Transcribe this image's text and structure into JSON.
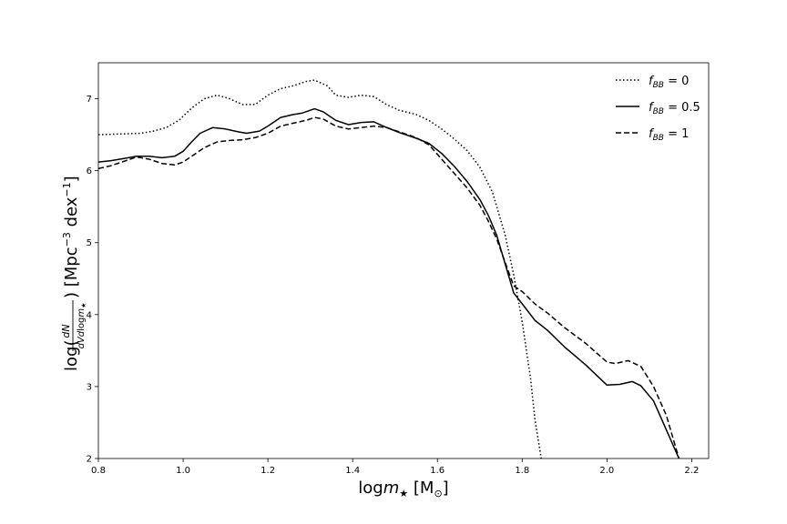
{
  "chart_data": {
    "type": "line",
    "xlabel": "logm★ [M⊙]",
    "ylabel": "log(dN / dVdlogm★) [Mpc⁻³ dex⁻¹]",
    "xlim": [
      0.8,
      2.24
    ],
    "ylim": [
      2,
      7.5
    ],
    "xticks": [
      "0.8",
      "1.0",
      "1.2",
      "1.4",
      "1.6",
      "1.8",
      "2.0",
      "2.2"
    ],
    "yticks": [
      "2",
      "3",
      "4",
      "5",
      "6",
      "7"
    ],
    "grid": false,
    "legend_position": "top-right",
    "series": [
      {
        "name": "f_BB = 0",
        "legend_main": "f",
        "legend_sub": "BB",
        "legend_rest": " = 0",
        "style": "dotted",
        "x": [
          0.8,
          0.85,
          0.9,
          0.93,
          0.96,
          0.99,
          1.02,
          1.05,
          1.08,
          1.11,
          1.14,
          1.17,
          1.2,
          1.23,
          1.26,
          1.29,
          1.31,
          1.34,
          1.36,
          1.39,
          1.42,
          1.45,
          1.48,
          1.51,
          1.55,
          1.58,
          1.61,
          1.64,
          1.67,
          1.7,
          1.73,
          1.76,
          1.78,
          1.8,
          1.82,
          1.83,
          1.845
        ],
        "y": [
          6.5,
          6.51,
          6.52,
          6.55,
          6.6,
          6.7,
          6.87,
          7.0,
          7.05,
          7.0,
          6.92,
          6.92,
          7.05,
          7.14,
          7.18,
          7.24,
          7.26,
          7.18,
          7.05,
          7.02,
          7.05,
          7.03,
          6.92,
          6.84,
          6.78,
          6.7,
          6.58,
          6.44,
          6.28,
          6.05,
          5.7,
          5.1,
          4.55,
          3.9,
          3.1,
          2.55,
          2.0
        ]
      },
      {
        "name": "f_BB = 0.5",
        "legend_main": "f",
        "legend_sub": "BB",
        "legend_rest": " = 0.5",
        "style": "solid",
        "x": [
          0.8,
          0.83,
          0.86,
          0.89,
          0.92,
          0.95,
          0.98,
          1.0,
          1.02,
          1.04,
          1.07,
          1.1,
          1.13,
          1.15,
          1.18,
          1.2,
          1.23,
          1.26,
          1.28,
          1.31,
          1.33,
          1.36,
          1.39,
          1.42,
          1.45,
          1.48,
          1.51,
          1.55,
          1.58,
          1.61,
          1.64,
          1.67,
          1.7,
          1.72,
          1.74,
          1.76,
          1.78,
          1.8,
          1.83,
          1.86,
          1.9,
          1.95,
          2.0,
          2.03,
          2.06,
          2.08,
          2.11,
          2.14,
          2.17
        ],
        "y": [
          6.12,
          6.14,
          6.17,
          6.2,
          6.2,
          6.18,
          6.2,
          6.27,
          6.4,
          6.52,
          6.6,
          6.58,
          6.54,
          6.52,
          6.55,
          6.62,
          6.74,
          6.78,
          6.8,
          6.86,
          6.82,
          6.7,
          6.64,
          6.67,
          6.68,
          6.6,
          6.53,
          6.45,
          6.38,
          6.24,
          6.06,
          5.85,
          5.6,
          5.38,
          5.1,
          4.7,
          4.3,
          4.15,
          3.92,
          3.78,
          3.55,
          3.3,
          3.02,
          3.03,
          3.07,
          3.01,
          2.8,
          2.4,
          2.0
        ]
      },
      {
        "name": "f_BB = 1",
        "legend_main": "f",
        "legend_sub": "BB",
        "legend_rest": " = 1",
        "style": "dashed",
        "x": [
          0.8,
          0.83,
          0.86,
          0.89,
          0.92,
          0.95,
          0.98,
          1.0,
          1.02,
          1.05,
          1.08,
          1.11,
          1.14,
          1.17,
          1.2,
          1.23,
          1.26,
          1.29,
          1.31,
          1.33,
          1.36,
          1.39,
          1.42,
          1.45,
          1.48,
          1.51,
          1.55,
          1.58,
          1.61,
          1.64,
          1.67,
          1.7,
          1.72,
          1.74,
          1.76,
          1.78,
          1.8,
          1.83,
          1.86,
          1.9,
          1.95,
          2.0,
          2.02,
          2.05,
          2.08,
          2.11,
          2.14,
          2.17
        ],
        "y": [
          6.03,
          6.07,
          6.13,
          6.19,
          6.16,
          6.1,
          6.08,
          6.12,
          6.2,
          6.32,
          6.4,
          6.42,
          6.43,
          6.46,
          6.52,
          6.62,
          6.66,
          6.7,
          6.74,
          6.72,
          6.62,
          6.58,
          6.6,
          6.62,
          6.6,
          6.54,
          6.46,
          6.36,
          6.16,
          5.96,
          5.76,
          5.52,
          5.3,
          5.05,
          4.72,
          4.4,
          4.32,
          4.15,
          4.02,
          3.82,
          3.6,
          3.34,
          3.32,
          3.36,
          3.28,
          3.0,
          2.6,
          2.0
        ]
      }
    ]
  }
}
